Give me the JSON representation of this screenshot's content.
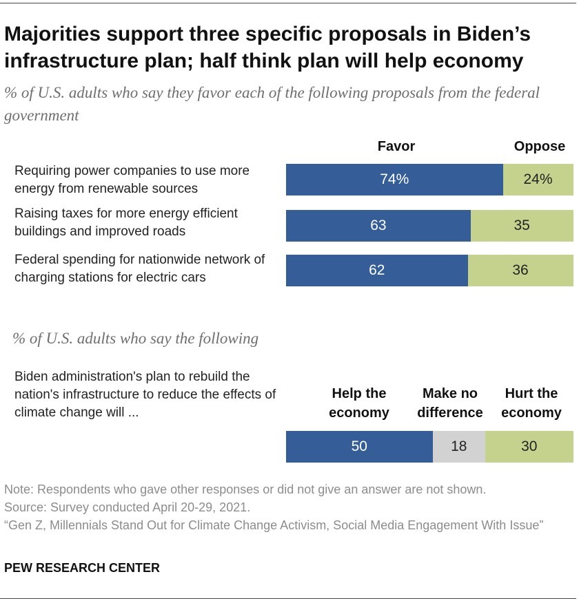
{
  "title": "Majorities support three specific proposals in Biden’s infrastructure plan; half think plan will help economy",
  "subtitle1": "% of U.S. adults who say they favor each of the following proposals from the federal government",
  "subtitle2": "% of U.S. adults who say the following",
  "colors": {
    "favor": "#355e99",
    "oppose": "#c5d28d",
    "neutral": "#d2d2d2"
  },
  "chart_data": [
    {
      "type": "bar",
      "orientation": "horizontal",
      "stacked": true,
      "series_labels": [
        "Favor",
        "Oppose"
      ],
      "rows": [
        {
          "label": "Requiring power companies to use more energy from renewable sources",
          "favor": 74,
          "oppose": 24,
          "favor_label": "74%",
          "oppose_label": "24%"
        },
        {
          "label": "Raising taxes for more energy efficient buildings and improved roads",
          "favor": 63,
          "oppose": 35,
          "favor_label": "63",
          "oppose_label": "35"
        },
        {
          "label": "Federal spending for nationwide network of charging stations for electric cars",
          "favor": 62,
          "oppose": 36,
          "favor_label": "62",
          "oppose_label": "36"
        }
      ]
    },
    {
      "type": "bar",
      "orientation": "horizontal",
      "stacked": true,
      "series_labels": [
        "Help the economy",
        "Make no difference",
        "Hurt the economy"
      ],
      "rows": [
        {
          "label": "Biden administration's plan to rebuild the nation's infrastructure to reduce the effects of climate change will ...",
          "help": 50,
          "no_difference": 18,
          "hurt": 30,
          "help_label": "50",
          "no_difference_label": "18",
          "hurt_label": "30"
        }
      ]
    }
  ],
  "footer": {
    "note": "Note: Respondents who gave other responses or did not give an answer are not shown.",
    "source": "Source: Survey conducted April 20-29, 2021.",
    "report": "“Gen Z, Millennials Stand Out for Climate Change Activism, Social Media Engagement With Issue”",
    "brand": "PEW RESEARCH CENTER"
  }
}
